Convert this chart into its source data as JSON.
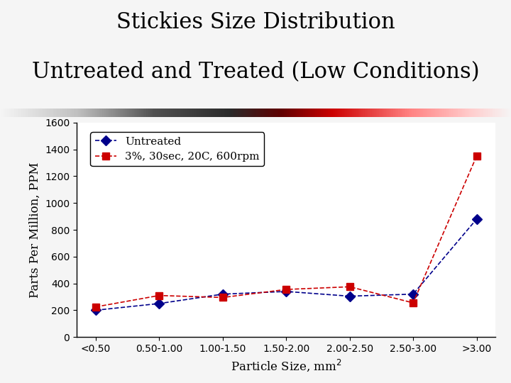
{
  "title_line1": "Stickies Size Distribution",
  "title_line2": "Untreated and Treated (Low Conditions)",
  "xlabel": "Particle Size, mm",
  "ylabel": "Parts Per Million, PPM",
  "x_labels": [
    "<0.50",
    "0.50-1.00",
    "1.00-1.50",
    "1.50-2.00",
    "2.00-2.50",
    "2.50-3.00",
    ">3.00"
  ],
  "untreated_values": [
    200,
    250,
    320,
    340,
    305,
    320,
    880
  ],
  "treated_values": [
    225,
    310,
    295,
    355,
    375,
    255,
    1350
  ],
  "untreated_color": "#00008B",
  "treated_color": "#CC0000",
  "ylim": [
    0,
    1600
  ],
  "yticks": [
    0,
    200,
    400,
    600,
    800,
    1000,
    1200,
    1400,
    1600
  ],
  "legend_untreated": "Untreated",
  "legend_treated": "3%, 30sec, 20C, 600rpm",
  "title_fontsize": 22,
  "label_fontsize": 12,
  "tick_fontsize": 10,
  "legend_fontsize": 11,
  "fig_bg_color": "#f5f5f5",
  "plot_bg_color": "#ffffff"
}
